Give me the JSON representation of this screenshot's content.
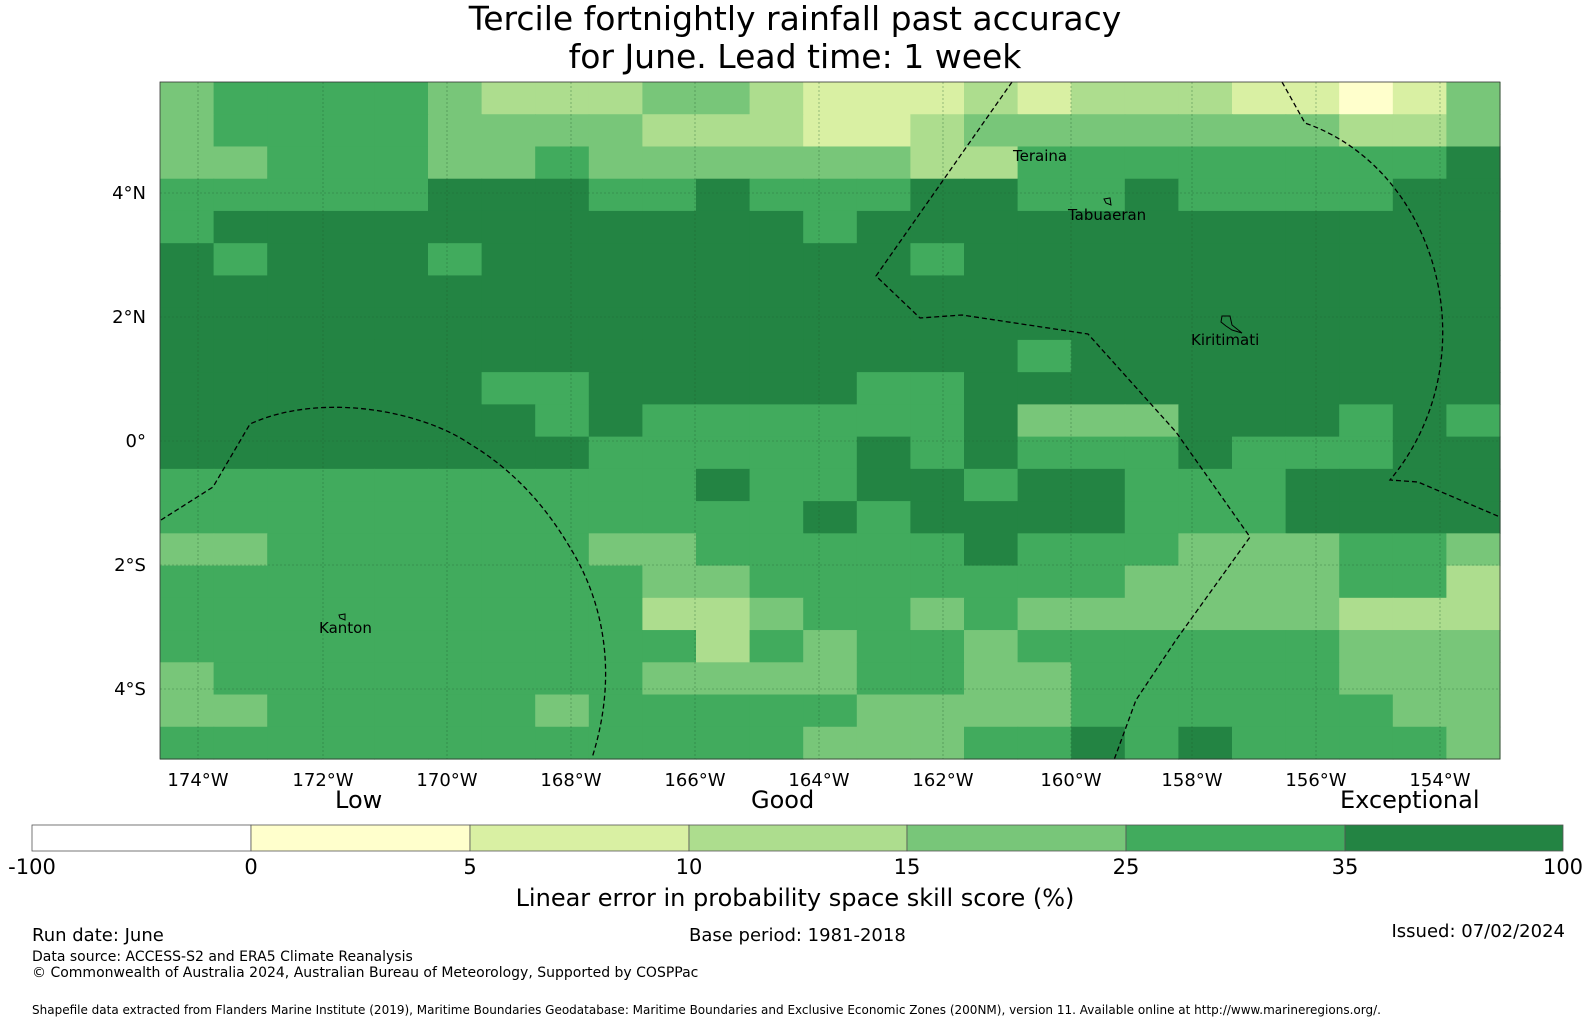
{
  "title_line1": "Tercile fortnightly rainfall past accuracy",
  "title_line2": "for June. Lead time: 1 week",
  "map": {
    "lon_labels": [
      "174°W",
      "172°W",
      "170°W",
      "168°W",
      "166°W",
      "164°W",
      "162°W",
      "160°W",
      "158°W",
      "156°W",
      "154°W"
    ],
    "lat_labels": [
      "4°N",
      "2°N",
      "0°",
      "2°S",
      "4°S"
    ],
    "places": [
      "Teraina",
      "Tabuaeran",
      "Kiritimati",
      "Kanton"
    ],
    "colors": [
      "#ffffff",
      "#ffffcc",
      "#d9f0a3",
      "#addd8e",
      "#78c679",
      "#41ab5d",
      "#238443"
    ],
    "grid_levels": [
      "4555543334432223233322124",
      "4555544443332234444444334",
      "4455544544444433555555556",
      "5555566655655566556555566",
      "5666666666665666666666666",
      "6566656666666656666666666",
      "6666666666666666666666666",
      "6666666666666666666666666",
      "6666666666666666566666666",
      "6666665566666556666666666",
      "6666666565555556444666565",
      "6666666655555656555655566",
      "5555555555655665665556666",
      "5555555555556566665556666",
      "4455555544555556555444554",
      "5555555554455555554444553",
      "5555555553345545444444333",
      "5555555555354554555555444",
      "4555555554444554455555444",
      "4455555455555444455555544",
      "5555555555554445565655554"
    ]
  },
  "colorbar": {
    "labels": [
      "-100",
      "0",
      "5",
      "10",
      "15",
      "25",
      "35",
      "100"
    ],
    "category_low": "Low",
    "category_good": "Good",
    "category_exceptional": "Exceptional",
    "title": "Linear error in probability space skill score (%)"
  },
  "footer": {
    "run_date": "Run date: June",
    "base_period": "Base period: 1981-2018",
    "issued": "Issued: 07/02/2024",
    "data_source": "Data source: ACCESS-S2 and ERA5 Climate Reanalysis",
    "copyright": "© Commonwealth of Australia 2024, Australian Bureau of Meteorology, Supported by COSPPac",
    "shapefile": "Shapefile data extracted from Flanders Marine Institute (2019), Maritime Boundaries Geodatabase: Maritime Boundaries and Exclusive Economic Zones (200NM), version 11. Available online at http://www.marineregions.org/."
  }
}
